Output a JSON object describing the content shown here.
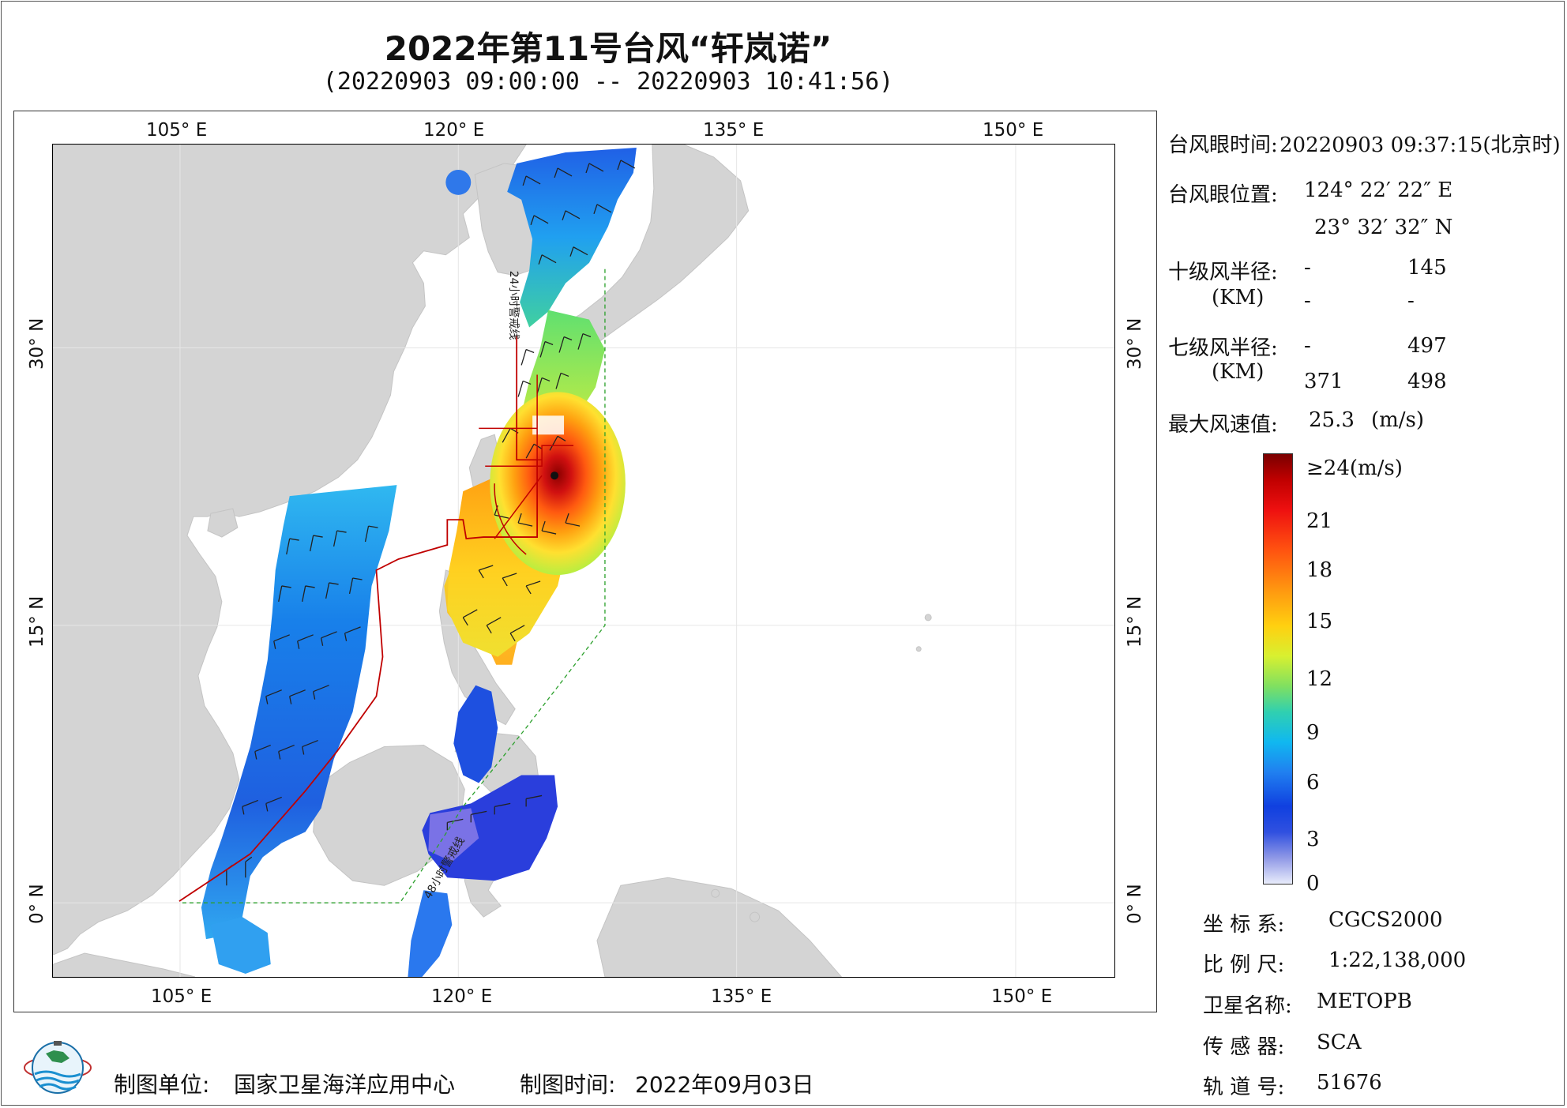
{
  "title": "2022年第11号台风“轩岚诺”",
  "subtitle": "(20220903 09:00:00 -- 20220903 10:41:56)",
  "map": {
    "lon_ticks_top": [
      "105° E",
      "120° E",
      "135° E",
      "150° E"
    ],
    "lon_ticks_bottom": [
      "105° E",
      "120° E",
      "135° E",
      "150° E"
    ],
    "lat_ticks_left": [
      "30° N",
      "15° N",
      "0° N"
    ],
    "lat_ticks_right": [
      "30° N",
      "15° N",
      "0° N"
    ],
    "line_labels": [
      "24小时警戒线",
      "48小时警戒线"
    ],
    "colors": {
      "land": "#d4d4d4",
      "sea": "#ffffff",
      "warning_24h": "#c00000",
      "warning_48h": "#2ca02c",
      "grid": "#e6e6e6"
    }
  },
  "info": {
    "eye_time_label": "台风眼时间:",
    "eye_time_value": "20220903 09:37:15(北京时)",
    "eye_pos_label": "台风眼位置:",
    "eye_lon": "124° 22′ 22″ E",
    "eye_lat": "23° 32′ 32″ N",
    "r10_label": "十级风半径:",
    "r7_label": "七级风半径:",
    "km_unit": "(KM)",
    "r10_values": [
      "-",
      "145",
      "-",
      "-"
    ],
    "r7_values": [
      "-",
      "497",
      "371",
      "498"
    ],
    "max_wind_label": "最大风速值:",
    "max_wind_value": "25.3",
    "max_wind_unit": "(m/s)"
  },
  "colorbar": {
    "labels": [
      "≥24(m/s)",
      "21",
      "18",
      "15",
      "12",
      "9",
      "6",
      "3",
      "0"
    ]
  },
  "meta": {
    "crs_label": "坐 标 系:",
    "crs_value": "CGCS2000",
    "scale_label": "比 例 尺:",
    "scale_value": "1:22,138,000",
    "satellite_label": "卫星名称:",
    "satellite_value": "METOPB",
    "sensor_label": "传 感 器:",
    "sensor_value": "SCA",
    "orbit_label": "轨 道 号:",
    "orbit_value": "51676"
  },
  "footer": {
    "unit_label": "制图单位:",
    "unit_value": "国家卫星海洋应用中心",
    "time_label": "制图时间:",
    "time_value": "2022年09月03日"
  },
  "logo": {
    "icon": "nsoas-globe-logo"
  }
}
